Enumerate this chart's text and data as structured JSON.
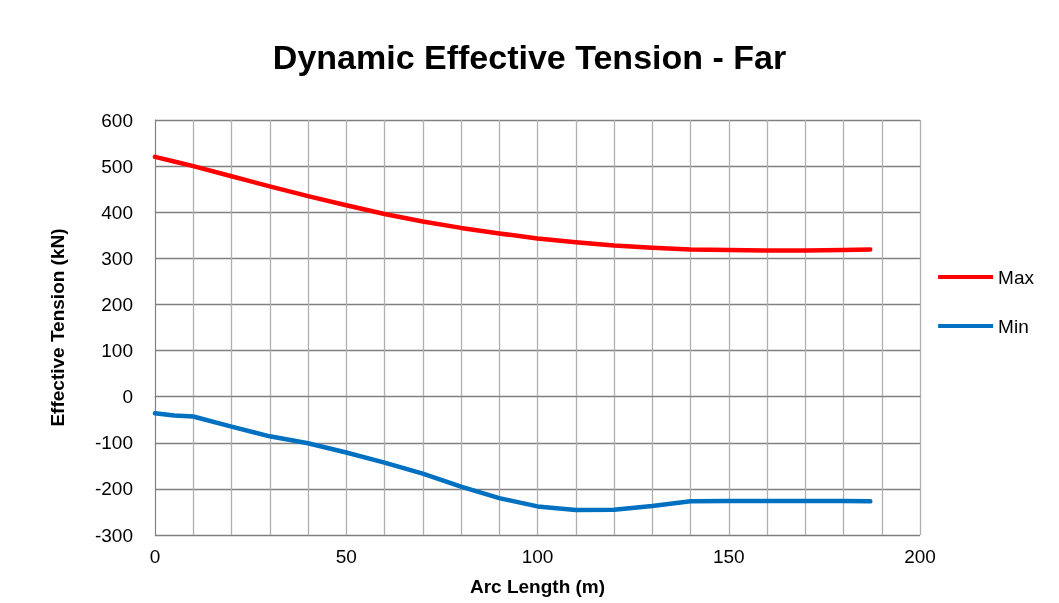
{
  "chart_data": {
    "type": "line",
    "title": "Dynamic Effective Tension - Far",
    "xlabel": "Arc Length (m)",
    "ylabel": "Effective Tension (kN)",
    "x": [
      0,
      5,
      10,
      20,
      30,
      40,
      50,
      60,
      70,
      80,
      90,
      100,
      110,
      120,
      130,
      140,
      150,
      160,
      170,
      180,
      187
    ],
    "series": [
      {
        "name": "Max",
        "color": "#ff0000",
        "values": [
          520,
          510,
          500,
          478,
          456,
          435,
          415,
          396,
          380,
          366,
          354,
          343,
          335,
          328,
          323,
          319,
          318,
          317,
          317,
          318,
          319
        ]
      },
      {
        "name": "Min",
        "color": "#0070c0",
        "values": [
          -36,
          -41,
          -43,
          -65,
          -86,
          -101,
          -121,
          -143,
          -167,
          -195,
          -220,
          -238,
          -246,
          -245,
          -237,
          -227,
          -226,
          -226,
          -226,
          -226,
          -227
        ]
      }
    ],
    "xlim": [
      0,
      200
    ],
    "xticks": [
      0,
      {
        "value": 10,
        "label": null
      },
      {
        "value": 20,
        "label": null
      },
      {
        "value": 30,
        "label": null
      },
      {
        "value": 40,
        "label": null
      },
      50,
      {
        "value": 60,
        "label": null
      },
      {
        "value": 70,
        "label": null
      },
      {
        "value": 80,
        "label": null
      },
      {
        "value": 90,
        "label": null
      },
      100,
      {
        "value": 110,
        "label": null
      },
      {
        "value": 120,
        "label": null
      },
      {
        "value": 130,
        "label": null
      },
      {
        "value": 140,
        "label": null
      },
      150,
      {
        "value": 160,
        "label": null
      },
      {
        "value": 170,
        "label": null
      },
      {
        "value": 180,
        "label": null
      },
      {
        "value": 190,
        "label": null
      },
      200
    ],
    "ylim": [
      -300,
      600
    ],
    "yticks": [
      -300,
      -200,
      -100,
      0,
      100,
      200,
      300,
      400,
      500,
      600
    ],
    "grid": true,
    "legend": "right",
    "marker": "none",
    "line_style": "solid"
  }
}
